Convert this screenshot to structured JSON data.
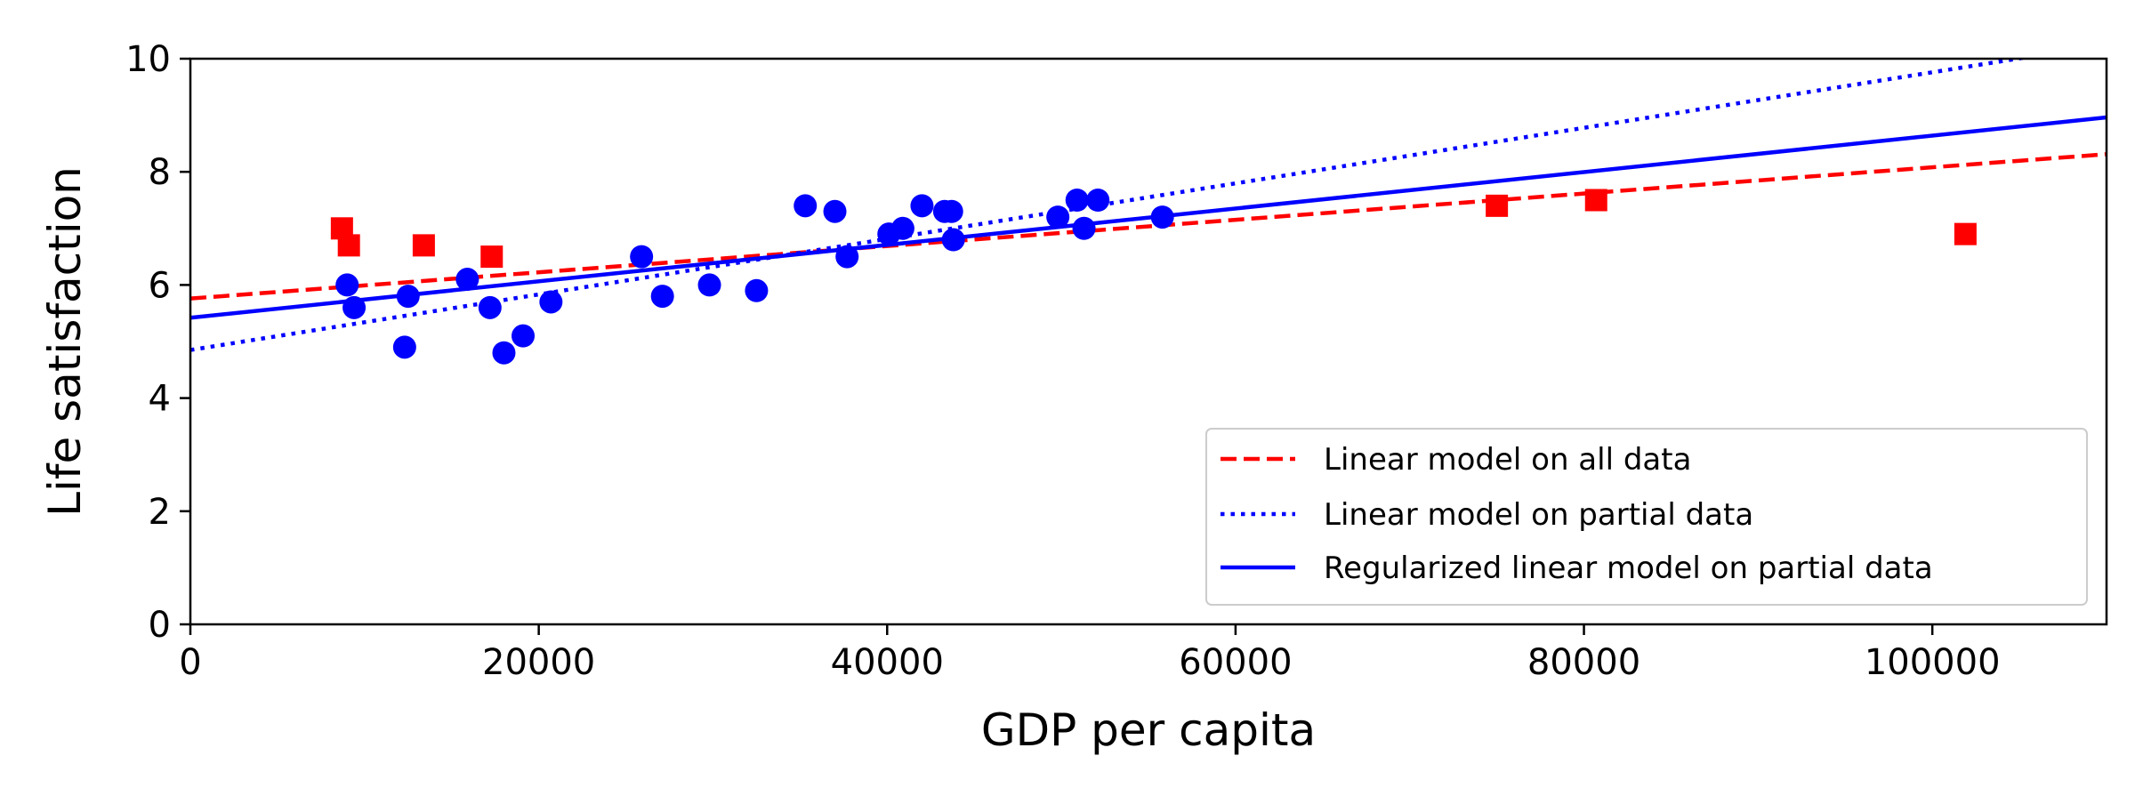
{
  "chart_data": {
    "type": "scatter",
    "xlabel": "GDP per capita",
    "ylabel": "Life satisfaction",
    "xlim": [
      0,
      110000
    ],
    "ylim": [
      0,
      10
    ],
    "x_ticks": [
      "0",
      "20000",
      "40000",
      "60000",
      "80000",
      "100000"
    ],
    "y_ticks": [
      "0",
      "2",
      "4",
      "6",
      "8",
      "10"
    ],
    "grid": false,
    "legend_position": "lower-right",
    "series": [
      {
        "kind": "points",
        "marker": "circle",
        "color": "#0000ff",
        "x": [
          9000,
          9400,
          12300,
          12500,
          15900,
          17200,
          18000,
          19100,
          20700,
          25900,
          27100,
          29800,
          32500,
          35300,
          37000,
          37700,
          40100,
          40900,
          42000,
          43300,
          43700,
          43800,
          49800,
          50900,
          51300,
          52100,
          55800
        ],
        "y": [
          6.0,
          5.6,
          4.9,
          5.8,
          6.1,
          5.6,
          4.8,
          5.1,
          5.7,
          6.5,
          5.8,
          6.0,
          5.9,
          7.4,
          7.3,
          6.5,
          6.9,
          7.0,
          7.4,
          7.3,
          7.3,
          6.8,
          7.2,
          7.5,
          7.0,
          7.5,
          7.2
        ]
      },
      {
        "kind": "points",
        "marker": "square",
        "color": "#ff0000",
        "x": [
          8700,
          9100,
          13400,
          17300,
          75000,
          80700,
          101900
        ],
        "y": [
          7.0,
          6.7,
          6.7,
          6.5,
          7.4,
          7.5,
          6.9
        ]
      },
      {
        "kind": "line",
        "name": "Linear model on all data",
        "style": "dashed",
        "color": "#ff0000",
        "intercept": 5.76,
        "slope": 2.32e-05
      },
      {
        "kind": "line",
        "name": "Linear model on partial data",
        "style": "dotted",
        "color": "#0000ff",
        "intercept": 4.85,
        "slope": 4.91e-05
      },
      {
        "kind": "line",
        "name": "Regularized linear model on partial data",
        "style": "solid",
        "color": "#0000ff",
        "intercept": 5.42,
        "slope": 3.22e-05
      }
    ]
  }
}
